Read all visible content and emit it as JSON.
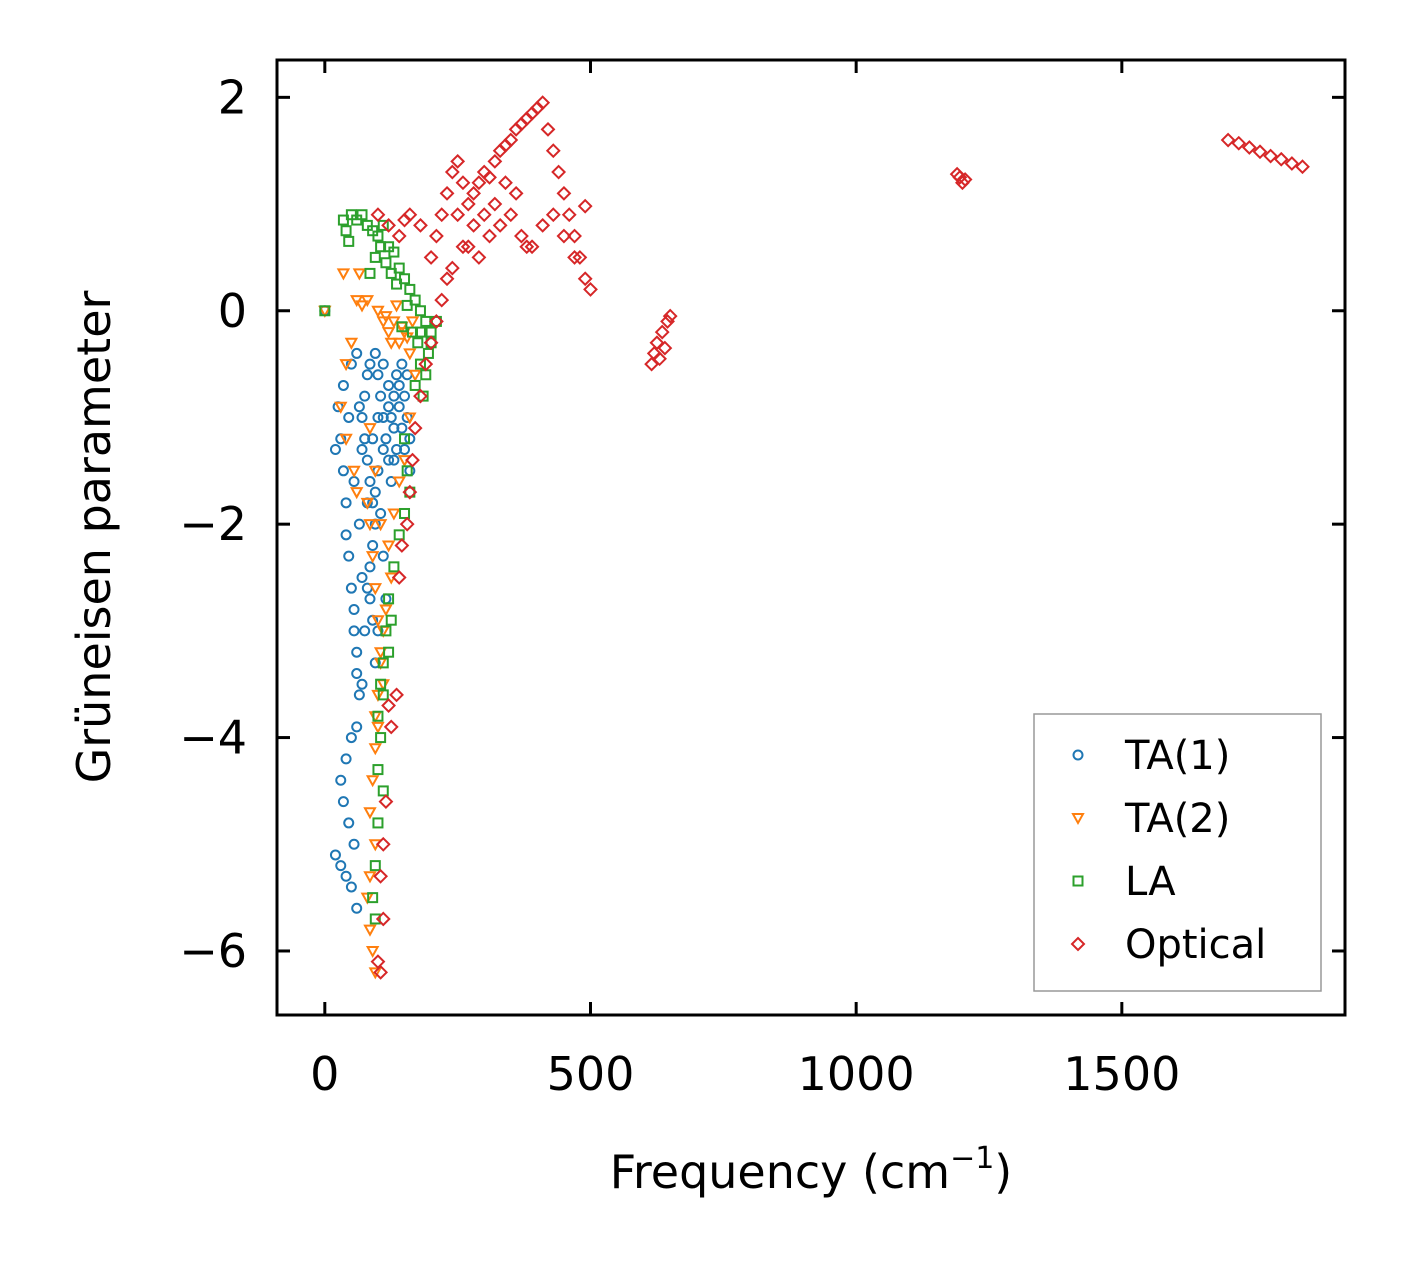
{
  "chart_data": {
    "type": "scatter",
    "title": "",
    "xlabel": "Frequency (cm",
    "xlabel_superscript": "−1",
    "xlabel_suffix": ")",
    "ylabel": "Grüneisen parameter",
    "xlim": [
      -90,
      1920
    ],
    "ylim": [
      -6.6,
      2.35
    ],
    "xticks": [
      0,
      500,
      1000,
      1500
    ],
    "xtick_labels": [
      "0",
      "500",
      "1000",
      "1500"
    ],
    "yticks": [
      2,
      0,
      -2,
      -4,
      -6
    ],
    "ytick_labels": [
      "2",
      "0",
      "−2",
      "−4",
      "−6"
    ],
    "grid": false,
    "legend_position": "lower-right",
    "series": [
      {
        "name": "TA(1)",
        "marker": "circle",
        "color": "#1f77b4",
        "points": [
          [
            0,
            0
          ],
          [
            20,
            -1.3
          ],
          [
            25,
            -0.9
          ],
          [
            30,
            -1.2
          ],
          [
            35,
            -1.5
          ],
          [
            40,
            -1.8
          ],
          [
            40,
            -2.1
          ],
          [
            45,
            -2.3
          ],
          [
            50,
            -2.6
          ],
          [
            55,
            -2.8
          ],
          [
            55,
            -3.0
          ],
          [
            60,
            -3.2
          ],
          [
            60,
            -3.4
          ],
          [
            65,
            -3.6
          ],
          [
            60,
            -3.9
          ],
          [
            50,
            -4.0
          ],
          [
            40,
            -4.2
          ],
          [
            30,
            -4.4
          ],
          [
            35,
            -4.6
          ],
          [
            45,
            -4.8
          ],
          [
            55,
            -5.0
          ],
          [
            30,
            -5.2
          ],
          [
            40,
            -5.3
          ],
          [
            50,
            -5.4
          ],
          [
            60,
            -5.6
          ],
          [
            20,
            -5.1
          ],
          [
            70,
            -3.5
          ],
          [
            75,
            -3.0
          ],
          [
            80,
            -2.6
          ],
          [
            85,
            -2.4
          ],
          [
            90,
            -2.2
          ],
          [
            95,
            -2.0
          ],
          [
            90,
            -1.8
          ],
          [
            85,
            -1.6
          ],
          [
            80,
            -1.4
          ],
          [
            75,
            -1.2
          ],
          [
            70,
            -1.0
          ],
          [
            75,
            -0.8
          ],
          [
            80,
            -0.6
          ],
          [
            85,
            -0.5
          ],
          [
            95,
            -0.4
          ],
          [
            100,
            -0.6
          ],
          [
            105,
            -0.8
          ],
          [
            110,
            -1.0
          ],
          [
            115,
            -1.2
          ],
          [
            120,
            -1.4
          ],
          [
            125,
            -1.0
          ],
          [
            130,
            -0.8
          ],
          [
            135,
            -0.6
          ],
          [
            140,
            -0.9
          ],
          [
            145,
            -1.1
          ],
          [
            150,
            -1.3
          ],
          [
            155,
            -1.0
          ],
          [
            160,
            -1.2
          ],
          [
            110,
            -0.5
          ],
          [
            120,
            -0.7
          ],
          [
            130,
            -1.1
          ],
          [
            100,
            -1.5
          ],
          [
            95,
            -1.7
          ],
          [
            105,
            -1.9
          ],
          [
            110,
            -2.3
          ],
          [
            115,
            -2.7
          ],
          [
            100,
            -3.0
          ],
          [
            95,
            -3.3
          ],
          [
            90,
            -2.9
          ],
          [
            85,
            -2.7
          ],
          [
            70,
            -2.5
          ],
          [
            65,
            -2.0
          ],
          [
            55,
            -1.6
          ],
          [
            45,
            -1.0
          ],
          [
            35,
            -0.7
          ],
          [
            50,
            -0.5
          ],
          [
            60,
            -0.4
          ],
          [
            65,
            -0.9
          ],
          [
            70,
            -1.3
          ],
          [
            80,
            -1.8
          ],
          [
            90,
            -1.2
          ],
          [
            100,
            -1.0
          ],
          [
            110,
            -1.3
          ],
          [
            120,
            -0.9
          ],
          [
            130,
            -1.4
          ],
          [
            140,
            -0.7
          ],
          [
            150,
            -0.8
          ],
          [
            160,
            -1.5
          ],
          [
            125,
            -1.6
          ],
          [
            135,
            -1.3
          ],
          [
            145,
            -0.5
          ],
          [
            155,
            -0.6
          ]
        ]
      },
      {
        "name": "TA(2)",
        "marker": "triangle-down",
        "color": "#ff7f0e",
        "points": [
          [
            0,
            0
          ],
          [
            35,
            0.35
          ],
          [
            65,
            0.35
          ],
          [
            60,
            0.1
          ],
          [
            70,
            0.05
          ],
          [
            80,
            0.1
          ],
          [
            50,
            -0.3
          ],
          [
            40,
            -0.5
          ],
          [
            30,
            -0.9
          ],
          [
            40,
            -1.2
          ],
          [
            55,
            -1.5
          ],
          [
            60,
            -1.7
          ],
          [
            80,
            -1.8
          ],
          [
            85,
            -2.0
          ],
          [
            90,
            -2.3
          ],
          [
            95,
            -2.6
          ],
          [
            100,
            -2.9
          ],
          [
            105,
            -3.2
          ],
          [
            110,
            -3.5
          ],
          [
            100,
            -3.9
          ],
          [
            95,
            -4.1
          ],
          [
            90,
            -4.4
          ],
          [
            85,
            -4.7
          ],
          [
            95,
            -5.0
          ],
          [
            85,
            -5.3
          ],
          [
            80,
            -5.5
          ],
          [
            85,
            -5.8
          ],
          [
            90,
            -6.0
          ],
          [
            95,
            -6.2
          ],
          [
            110,
            -0.1
          ],
          [
            120,
            -0.2
          ],
          [
            130,
            -0.1
          ],
          [
            140,
            -0.3
          ],
          [
            150,
            -0.2
          ],
          [
            160,
            -0.4
          ],
          [
            100,
            0.0
          ],
          [
            115,
            -0.05
          ],
          [
            125,
            -0.3
          ],
          [
            135,
            0.05
          ],
          [
            145,
            -0.15
          ],
          [
            155,
            -0.25
          ],
          [
            165,
            -0.1
          ],
          [
            170,
            -0.6
          ],
          [
            160,
            -1.0
          ],
          [
            150,
            -1.4
          ],
          [
            140,
            -1.6
          ],
          [
            130,
            -1.9
          ],
          [
            120,
            -2.2
          ],
          [
            125,
            -2.5
          ],
          [
            115,
            -2.8
          ],
          [
            110,
            -3.0
          ],
          [
            105,
            -3.3
          ],
          [
            100,
            -3.6
          ],
          [
            95,
            -3.8
          ],
          [
            105,
            -2.0
          ],
          [
            95,
            -1.5
          ],
          [
            85,
            -1.1
          ]
        ]
      },
      {
        "name": "LA",
        "marker": "square",
        "color": "#2ca02c",
        "points": [
          [
            0,
            0
          ],
          [
            35,
            0.85
          ],
          [
            40,
            0.75
          ],
          [
            45,
            0.65
          ],
          [
            50,
            0.9
          ],
          [
            60,
            0.85
          ],
          [
            70,
            0.9
          ],
          [
            80,
            0.8
          ],
          [
            90,
            0.75
          ],
          [
            100,
            0.7
          ],
          [
            110,
            0.8
          ],
          [
            120,
            0.6
          ],
          [
            130,
            0.55
          ],
          [
            140,
            0.4
          ],
          [
            150,
            0.3
          ],
          [
            160,
            0.2
          ],
          [
            170,
            0.1
          ],
          [
            180,
            0.0
          ],
          [
            190,
            -0.1
          ],
          [
            200,
            -0.2
          ],
          [
            195,
            -0.4
          ],
          [
            190,
            -0.6
          ],
          [
            185,
            -0.8
          ],
          [
            180,
            -0.5
          ],
          [
            175,
            -0.3
          ],
          [
            165,
            -0.2
          ],
          [
            155,
            0.05
          ],
          [
            145,
            -0.15
          ],
          [
            135,
            0.25
          ],
          [
            125,
            0.35
          ],
          [
            115,
            0.45
          ],
          [
            105,
            0.6
          ],
          [
            95,
            0.5
          ],
          [
            85,
            0.35
          ],
          [
            150,
            -1.2
          ],
          [
            155,
            -1.5
          ],
          [
            160,
            -1.7
          ],
          [
            150,
            -1.9
          ],
          [
            140,
            -2.1
          ],
          [
            130,
            -2.4
          ],
          [
            120,
            -2.7
          ],
          [
            115,
            -3.0
          ],
          [
            110,
            -3.3
          ],
          [
            105,
            -3.5
          ],
          [
            100,
            -3.8
          ],
          [
            105,
            -4.0
          ],
          [
            100,
            -4.3
          ],
          [
            110,
            -4.5
          ],
          [
            100,
            -4.8
          ],
          [
            95,
            -5.2
          ],
          [
            90,
            -5.5
          ],
          [
            95,
            -5.7
          ],
          [
            125,
            -2.9
          ],
          [
            120,
            -3.2
          ],
          [
            110,
            -3.6
          ],
          [
            170,
            -0.7
          ],
          [
            180,
            -0.2
          ],
          [
            200,
            -0.3
          ],
          [
            210,
            -0.1
          ]
        ]
      },
      {
        "name": "Optical",
        "marker": "diamond",
        "color": "#d62728",
        "points": [
          [
            100,
            0.9
          ],
          [
            120,
            0.8
          ],
          [
            140,
            0.7
          ],
          [
            150,
            0.85
          ],
          [
            160,
            0.9
          ],
          [
            180,
            0.8
          ],
          [
            200,
            0.5
          ],
          [
            210,
            0.7
          ],
          [
            220,
            0.9
          ],
          [
            230,
            1.1
          ],
          [
            240,
            1.3
          ],
          [
            250,
            1.4
          ],
          [
            260,
            1.2
          ],
          [
            270,
            1.0
          ],
          [
            280,
            1.1
          ],
          [
            290,
            1.2
          ],
          [
            300,
            1.3
          ],
          [
            310,
            1.25
          ],
          [
            320,
            1.4
          ],
          [
            330,
            1.5
          ],
          [
            340,
            1.55
          ],
          [
            350,
            1.6
          ],
          [
            360,
            1.7
          ],
          [
            370,
            1.75
          ],
          [
            380,
            1.8
          ],
          [
            390,
            1.85
          ],
          [
            400,
            1.9
          ],
          [
            410,
            1.95
          ],
          [
            420,
            1.7
          ],
          [
            430,
            1.5
          ],
          [
            440,
            1.3
          ],
          [
            450,
            1.1
          ],
          [
            460,
            0.9
          ],
          [
            470,
            0.7
          ],
          [
            480,
            0.5
          ],
          [
            490,
            0.3
          ],
          [
            500,
            0.2
          ],
          [
            490,
            0.98
          ],
          [
            250,
            0.9
          ],
          [
            270,
            0.6
          ],
          [
            290,
            0.5
          ],
          [
            310,
            0.7
          ],
          [
            330,
            0.8
          ],
          [
            350,
            0.9
          ],
          [
            370,
            0.7
          ],
          [
            390,
            0.6
          ],
          [
            410,
            0.8
          ],
          [
            430,
            0.9
          ],
          [
            450,
            0.7
          ],
          [
            470,
            0.5
          ],
          [
            230,
            0.3
          ],
          [
            220,
            0.1
          ],
          [
            210,
            -0.1
          ],
          [
            200,
            -0.3
          ],
          [
            190,
            -0.5
          ],
          [
            180,
            -0.8
          ],
          [
            170,
            -1.1
          ],
          [
            165,
            -1.4
          ],
          [
            160,
            -1.7
          ],
          [
            155,
            -2.0
          ],
          [
            145,
            -2.2
          ],
          [
            140,
            -2.5
          ],
          [
            380,
            0.6
          ],
          [
            360,
            1.1
          ],
          [
            340,
            1.2
          ],
          [
            320,
            1.0
          ],
          [
            300,
            0.9
          ],
          [
            280,
            0.8
          ],
          [
            260,
            0.6
          ],
          [
            240,
            0.4
          ],
          [
            615,
            -0.5
          ],
          [
            620,
            -0.4
          ],
          [
            625,
            -0.3
          ],
          [
            630,
            -0.45
          ],
          [
            635,
            -0.2
          ],
          [
            640,
            -0.35
          ],
          [
            645,
            -0.1
          ],
          [
            650,
            -0.05
          ],
          [
            1190,
            1.28
          ],
          [
            1195,
            1.25
          ],
          [
            1200,
            1.2
          ],
          [
            1205,
            1.23
          ],
          [
            1700,
            1.6
          ],
          [
            1720,
            1.57
          ],
          [
            1740,
            1.53
          ],
          [
            1760,
            1.49
          ],
          [
            1780,
            1.45
          ],
          [
            1800,
            1.42
          ],
          [
            1820,
            1.38
          ],
          [
            1840,
            1.35
          ],
          [
            135,
            -3.6
          ],
          [
            125,
            -3.9
          ],
          [
            115,
            -4.6
          ],
          [
            110,
            -5.0
          ],
          [
            105,
            -5.3
          ],
          [
            110,
            -5.7
          ],
          [
            100,
            -6.1
          ],
          [
            105,
            -6.2
          ],
          [
            120,
            -3.7
          ]
        ]
      }
    ]
  }
}
